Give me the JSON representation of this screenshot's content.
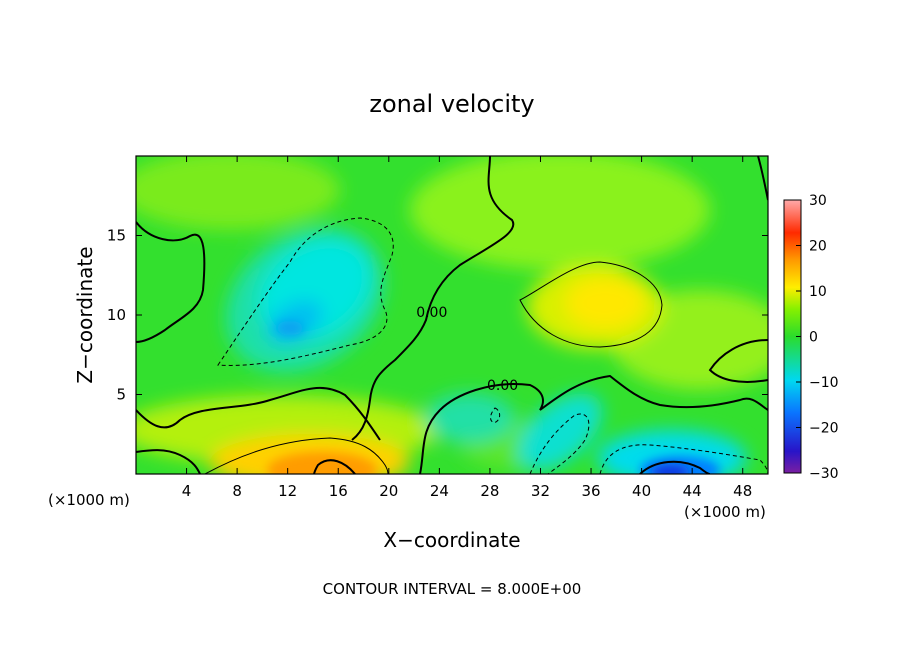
{
  "chart_data": {
    "type": "heatmap",
    "title": "zonal velocity",
    "xlabel": "X−coordinate",
    "ylabel": "Z−coordinate",
    "x_unit_left": "(×1000 m)",
    "x_unit_right": "(×1000 m)",
    "footer": "CONTOUR INTERVAL = 8.000E+00",
    "xlim": [
      0,
      50
    ],
    "ylim": [
      0,
      20
    ],
    "x_ticks": [
      4,
      8,
      12,
      16,
      20,
      24,
      28,
      32,
      36,
      40,
      44,
      48
    ],
    "y_ticks": [
      5,
      10,
      15
    ],
    "contour_labels": [
      {
        "text": "0.00",
        "x": 23.4,
        "z": 10.2
      },
      {
        "text": "0.00",
        "x": 29.0,
        "z": 5.6
      }
    ],
    "colorbar": {
      "min": -30,
      "max": 30,
      "ticks": [
        30,
        20,
        10,
        0,
        -10,
        -20,
        -30
      ]
    },
    "features": [
      {
        "name": "negative-core-upper-left",
        "x": 12,
        "z": 9.5,
        "value": -11
      },
      {
        "name": "positive-core-upper-right",
        "x": 38,
        "z": 10.8,
        "value": 10
      },
      {
        "name": "positive-core-bottom-left",
        "x": 16,
        "z": 0.6,
        "value": 17
      },
      {
        "name": "negative-core-bottom-right",
        "x": 42,
        "z": 0.4,
        "value": -20
      },
      {
        "name": "negative-patch-center",
        "x": 34,
        "z": 2.5,
        "value": -7
      }
    ]
  }
}
